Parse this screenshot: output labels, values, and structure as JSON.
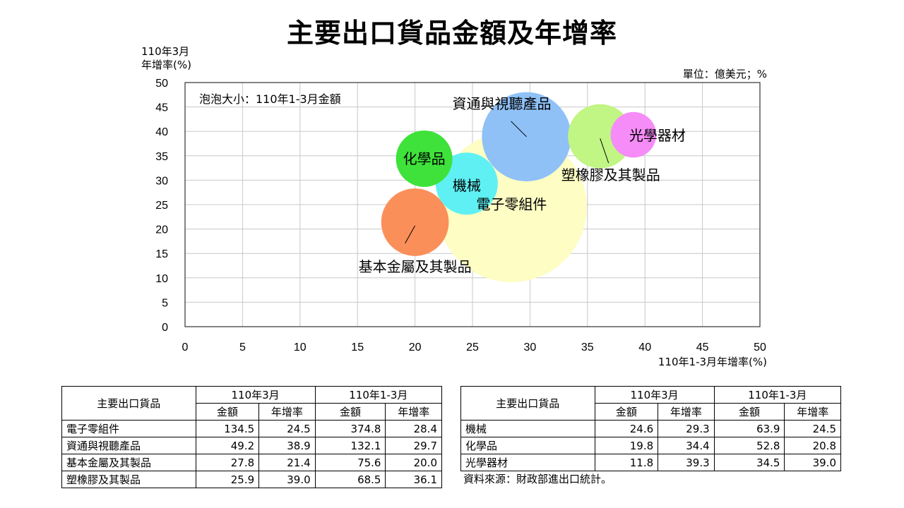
{
  "page": {
    "title": "主要出口貨品金額及年增率",
    "unit_note": "單位：億美元；%",
    "source_note": "資料來源：財政部進出口統計。"
  },
  "chart_data": {
    "type": "scatter",
    "title": "主要出口貨品金額及年增率",
    "xlabel": "110年1-3月年增率(%)",
    "ylabel": [
      "110年3月",
      "年增率(%)"
    ],
    "size_note": "泡泡大小：110年1-3月金額",
    "xlim": [
      0,
      50
    ],
    "ylim": [
      0,
      50
    ],
    "xticks": [
      0,
      5,
      10,
      15,
      20,
      25,
      30,
      35,
      40,
      45,
      50
    ],
    "yticks": [
      0,
      5,
      10,
      15,
      20,
      25,
      30,
      35,
      40,
      45,
      50
    ],
    "grid": true,
    "series": [
      {
        "name": "電子零組件",
        "x": 28.4,
        "y": 24.5,
        "size": 374.8,
        "color": "#fdfdc4"
      },
      {
        "name": "資通與視聽產品",
        "x": 29.7,
        "y": 38.9,
        "size": 132.1,
        "color": "#8fc1f7"
      },
      {
        "name": "基本金屬及其製品",
        "x": 20.0,
        "y": 21.4,
        "size": 75.6,
        "color": "#fb8f5a"
      },
      {
        "name": "塑橡膠及其製品",
        "x": 36.1,
        "y": 39.0,
        "size": 68.5,
        "color": "#c1f584"
      },
      {
        "name": "機械",
        "x": 24.5,
        "y": 29.3,
        "size": 63.9,
        "color": "#5ff0f3"
      },
      {
        "name": "化學品",
        "x": 20.8,
        "y": 34.4,
        "size": 52.8,
        "color": "#3ee23a"
      },
      {
        "name": "光學器材",
        "x": 39.0,
        "y": 39.3,
        "size": 34.5,
        "color": "#f58cf7"
      }
    ]
  },
  "tables": {
    "headers": {
      "item": "主要出口貨品",
      "period_month": "110年3月",
      "period_ytd": "110年1-3月",
      "amount": "金額",
      "growth": "年增率"
    },
    "left_rows": [
      {
        "name": "電子零組件",
        "m_amt": "134.5",
        "m_gr": "24.5",
        "y_amt": "374.8",
        "y_gr": "28.4"
      },
      {
        "name": "資通與視聽產品",
        "m_amt": "49.2",
        "m_gr": "38.9",
        "y_amt": "132.1",
        "y_gr": "29.7"
      },
      {
        "name": "基本金屬及其製品",
        "m_amt": "27.8",
        "m_gr": "21.4",
        "y_amt": "75.6",
        "y_gr": "20.0"
      },
      {
        "name": "塑橡膠及其製品",
        "m_amt": "25.9",
        "m_gr": "39.0",
        "y_amt": "68.5",
        "y_gr": "36.1"
      }
    ],
    "right_rows": [
      {
        "name": "機械",
        "m_amt": "24.6",
        "m_gr": "29.3",
        "y_amt": "63.9",
        "y_gr": "24.5"
      },
      {
        "name": "化學品",
        "m_amt": "19.8",
        "m_gr": "34.4",
        "y_amt": "52.8",
        "y_gr": "20.8"
      },
      {
        "name": "光學器材",
        "m_amt": "11.8",
        "m_gr": "39.3",
        "y_amt": "34.5",
        "y_gr": "39.0"
      }
    ]
  }
}
